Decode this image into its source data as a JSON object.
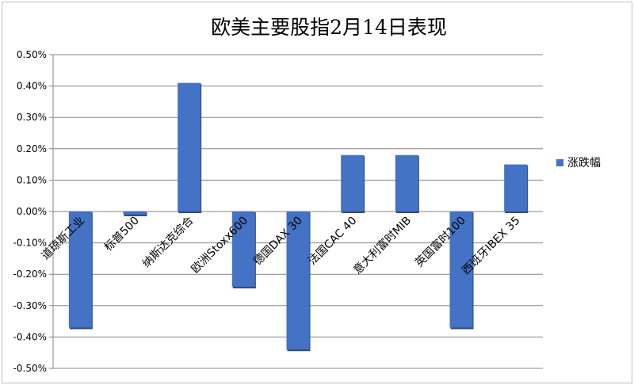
{
  "chart_data": {
    "type": "bar",
    "title": "欧美主要股指2月14日表现",
    "categories": [
      "道琼斯工业",
      "标普500",
      "纳斯达克综合",
      "欧洲Stoxx600",
      "德国DAX 30",
      "法国CAC 40",
      "意大利富时MIB",
      "英国富时100",
      "西班牙IBEX 35"
    ],
    "series": [
      {
        "name": "涨跌幅",
        "values": [
          -0.37,
          -0.01,
          0.41,
          -0.24,
          -0.44,
          0.18,
          0.18,
          -0.37,
          0.15
        ]
      }
    ],
    "y_ticks": [
      "0.50%",
      "0.40%",
      "0.30%",
      "0.20%",
      "0.10%",
      "0.00%",
      "-0.10%",
      "-0.20%",
      "-0.30%",
      "-0.40%",
      "-0.50%"
    ],
    "ylim": [
      -0.5,
      0.5
    ],
    "y_unit": "%",
    "grid": true,
    "legend_position": "right",
    "colors": {
      "bar": "#4472c4",
      "bar_shadow": "#2e4a7d",
      "grid": "#868686",
      "axis": "#868686"
    }
  }
}
